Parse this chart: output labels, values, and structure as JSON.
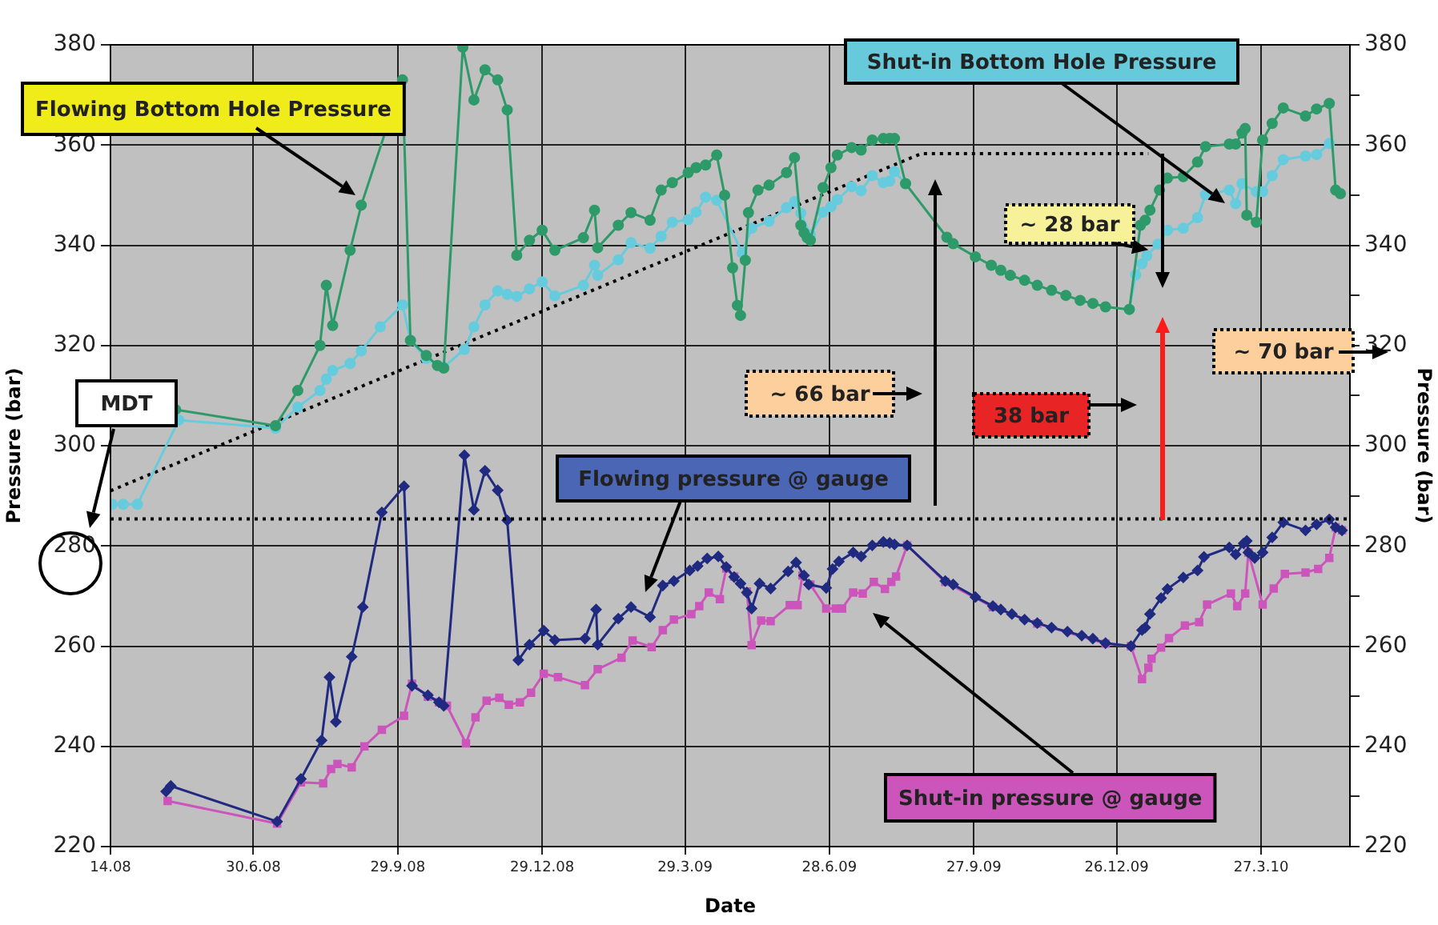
{
  "chart_data": {
    "type": "line",
    "xlabel": "Date",
    "ylabel": "Pressure (bar)",
    "y2label": "Pressure (bar)",
    "xlim": [
      "2008-04-01",
      "2010-05-22"
    ],
    "xticks": [
      {
        "value": "2008-04-01",
        "label": "14.08"
      },
      {
        "value": "2008-06-30",
        "label": "30.6.08"
      },
      {
        "value": "2008-09-29",
        "label": "29.9.08"
      },
      {
        "value": "2008-12-29",
        "label": "29.12.08"
      },
      {
        "value": "2009-03-29",
        "label": "29.3.09"
      },
      {
        "value": "2009-06-28",
        "label": "28.6.09"
      },
      {
        "value": "2009-09-27",
        "label": "27.9.09"
      },
      {
        "value": "2009-12-26",
        "label": "26.12.09"
      },
      {
        "value": "2010-03-27",
        "label": "27.3.10"
      }
    ],
    "ylim": [
      220,
      380
    ],
    "yticks": [
      220,
      240,
      260,
      280,
      300,
      320,
      340,
      360,
      380
    ],
    "y2lim": [
      220,
      380
    ],
    "y2ticks": [
      220,
      {
        "value": 230,
        "label": null
      },
      240,
      {
        "value": 250,
        "label": null
      },
      260,
      {
        "value": 270,
        "label": null
      },
      280,
      {
        "value": 290,
        "label": null
      },
      300,
      {
        "value": 310,
        "label": null
      },
      320,
      {
        "value": 330,
        "label": null
      },
      340,
      {
        "value": 350,
        "label": null
      },
      360,
      {
        "value": 370,
        "label": null
      },
      380
    ],
    "grid": true,
    "series": [
      {
        "name": "Flowing Bottom Hole Pressure",
        "color": "#2e9a6a",
        "marker": "circle",
        "x": [
          "2008-05-12",
          "2008-07-14",
          "2008-07-28",
          "2008-08-11",
          "2008-08-15",
          "2008-08-19",
          "2008-08-30",
          "2008-09-06",
          "2008-10-02",
          "2008-10-07",
          "2008-10-17",
          "2008-10-24",
          "2008-10-28",
          "2008-11-09",
          "2008-11-16",
          "2008-11-23",
          "2008-12-01",
          "2008-12-07",
          "2008-12-13",
          "2008-12-21",
          "2008-12-29",
          "2009-01-06",
          "2009-01-24",
          "2009-01-31",
          "2009-02-02",
          "2009-02-15",
          "2009-02-23",
          "2009-03-07",
          "2009-03-14",
          "2009-03-21",
          "2009-03-31",
          "2009-04-05",
          "2009-04-11",
          "2009-04-18",
          "2009-04-23",
          "2009-04-28",
          "2009-05-01",
          "2009-05-03",
          "2009-05-06",
          "2009-05-08",
          "2009-05-14",
          "2009-05-21",
          "2009-06-01",
          "2009-06-06",
          "2009-06-10",
          "2009-06-12",
          "2009-06-14",
          "2009-06-16",
          "2009-06-24",
          "2009-06-29",
          "2009-07-03",
          "2009-07-12",
          "2009-07-18",
          "2009-07-25",
          "2009-08-01",
          "2009-08-05",
          "2009-08-08",
          "2009-08-15",
          "2009-09-10",
          "2009-09-14",
          "2009-09-28",
          "2009-10-08",
          "2009-10-14",
          "2009-10-20",
          "2009-10-29",
          "2009-11-06",
          "2009-11-15",
          "2009-11-24",
          "2009-12-03",
          "2009-12-11",
          "2009-12-19",
          "2010-01-03",
          "2010-01-10",
          "2010-01-13",
          "2010-01-16",
          "2010-01-22",
          "2010-01-27",
          "2010-02-06",
          "2010-02-15",
          "2010-02-20",
          "2010-03-07",
          "2010-03-11",
          "2010-03-15",
          "2010-03-17",
          "2010-03-18",
          "2010-03-24",
          "2010-03-28",
          "2010-04-03",
          "2010-04-10",
          "2010-04-24",
          "2010-05-01",
          "2010-05-09",
          "2010-05-13",
          "2010-05-16"
        ],
        "values": [
          307.2,
          304,
          311,
          320,
          332,
          324,
          339,
          348,
          373,
          321,
          318,
          316,
          315.5,
          379.5,
          369,
          375,
          373,
          367,
          338,
          341,
          343,
          339,
          341.5,
          347,
          339.5,
          344,
          346.5,
          345,
          351,
          352.5,
          354.5,
          355.5,
          356,
          358,
          350,
          335.5,
          328,
          326,
          337,
          346.5,
          351,
          352,
          354.5,
          357.5,
          344,
          342.5,
          341.5,
          341,
          351.5,
          355.5,
          358,
          359.5,
          359,
          361,
          361.3,
          361.3,
          361.3,
          352.3,
          341.6,
          340.3,
          337.7,
          336,
          335,
          334,
          333,
          332,
          331,
          330,
          329,
          328.4,
          327.7,
          327.2,
          344,
          345,
          347,
          351,
          353.4,
          353.7,
          356.6,
          359.7,
          360.2,
          360.2,
          362.4,
          363.3,
          346,
          344.6,
          361,
          364.3,
          367.4,
          365.8,
          367.2,
          368.3,
          351,
          350.3
        ]
      },
      {
        "name": "Shut-in Bottom Hole Pressure",
        "color": "#66ccdd",
        "marker": "circle",
        "x": [
          "2008-04-02",
          "2008-04-09",
          "2008-04-18",
          "2008-05-14",
          "2008-07-14",
          "2008-07-28",
          "2008-08-11",
          "2008-08-15",
          "2008-08-19",
          "2008-08-30",
          "2008-09-06",
          "2008-09-18",
          "2008-10-02",
          "2008-10-07",
          "2008-10-17",
          "2008-10-28",
          "2008-11-10",
          "2008-11-16",
          "2008-11-23",
          "2008-12-01",
          "2008-12-07",
          "2008-12-13",
          "2008-12-21",
          "2008-12-29",
          "2009-01-06",
          "2009-01-24",
          "2009-01-31",
          "2009-02-02",
          "2009-02-15",
          "2009-02-23",
          "2009-03-07",
          "2009-03-14",
          "2009-03-21",
          "2009-03-31",
          "2009-04-05",
          "2009-04-11",
          "2009-04-18",
          "2009-05-04",
          "2009-05-10",
          "2009-05-21",
          "2009-06-01",
          "2009-06-06",
          "2009-06-10",
          "2009-06-16",
          "2009-06-24",
          "2009-06-29",
          "2009-07-03",
          "2009-07-12",
          "2009-07-18",
          "2009-07-25",
          "2009-08-01",
          "2009-08-05",
          "2009-08-08",
          "2009-08-15",
          "2009-10-23",
          "2010-01-03",
          "2010-01-07",
          "2010-01-11",
          "2010-01-14",
          "2010-01-21",
          "2010-01-27",
          "2010-02-06",
          "2010-02-15",
          "2010-02-20",
          "2010-03-07",
          "2010-03-11",
          "2010-03-15",
          "2010-03-24",
          "2010-03-28",
          "2010-04-03",
          "2010-04-10",
          "2010-04-24",
          "2010-05-01",
          "2010-05-09"
        ],
        "values": [
          288.3,
          288.3,
          288.3,
          305.1,
          303.5,
          307.7,
          311,
          313.3,
          315,
          316.4,
          318.9,
          323.7,
          328.1,
          321,
          317.4,
          315.7,
          319.2,
          323.7,
          328.1,
          330.9,
          330.2,
          329.8,
          331.3,
          332.7,
          329.9,
          332,
          336,
          334,
          337.1,
          340.5,
          339.4,
          341.8,
          344.6,
          345.1,
          346.6,
          349.6,
          349,
          338.5,
          343.4,
          344.8,
          347.5,
          348.7,
          346.4,
          342.1,
          346.6,
          347.7,
          349.1,
          351.7,
          350.9,
          353.9,
          352.5,
          352.8,
          354.7,
          352.3,
          null,
          327.2,
          334.1,
          336.3,
          337.9,
          340.2,
          343,
          343.4,
          345.5,
          350.1,
          351,
          348.3,
          352.3,
          350.7,
          350.7,
          353.9,
          357.1,
          357.8,
          358.1,
          360.3
        ]
      },
      {
        "name": "Flowing pressure @ gauge",
        "color": "#1f2a80",
        "marker": "diamond",
        "x": [
          "2008-05-06",
          "2008-05-09",
          "2008-07-15",
          "2008-07-30",
          "2008-08-12",
          "2008-08-17",
          "2008-08-21",
          "2008-08-31",
          "2008-09-07",
          "2008-09-19",
          "2008-10-03",
          "2008-10-08",
          "2008-10-18",
          "2008-10-25",
          "2008-10-28",
          "2008-11-10",
          "2008-11-16",
          "2008-11-23",
          "2008-12-01",
          "2008-12-07",
          "2008-12-14",
          "2008-12-21",
          "2008-12-30",
          "2009-01-06",
          "2009-01-25",
          "2009-02-01",
          "2009-02-02",
          "2009-02-15",
          "2009-02-23",
          "2009-03-07",
          "2009-03-15",
          "2009-03-22",
          "2009-04-01",
          "2009-04-06",
          "2009-04-12",
          "2009-04-19",
          "2009-04-24",
          "2009-04-29",
          "2009-05-03",
          "2009-05-07",
          "2009-05-10",
          "2009-05-15",
          "2009-05-22",
          "2009-06-02",
          "2009-06-07",
          "2009-06-12",
          "2009-06-15",
          "2009-06-26",
          "2009-06-30",
          "2009-07-04",
          "2009-07-13",
          "2009-07-18",
          "2009-07-25",
          "2009-08-01",
          "2009-08-05",
          "2009-08-08",
          "2009-08-16",
          "2009-09-09",
          "2009-09-14",
          "2009-09-28",
          "2009-10-09",
          "2009-10-14",
          "2009-10-21",
          "2009-10-29",
          "2009-11-06",
          "2009-11-15",
          "2009-11-25",
          "2009-12-04",
          "2009-12-11",
          "2009-12-19",
          "2010-01-04",
          "2010-01-11",
          "2010-01-13",
          "2010-01-16",
          "2010-01-23",
          "2010-01-27",
          "2010-02-06",
          "2010-02-15",
          "2010-02-19",
          "2010-03-07",
          "2010-03-11",
          "2010-03-16",
          "2010-03-18",
          "2010-03-19",
          "2010-03-23",
          "2010-03-28",
          "2010-04-03",
          "2010-04-10",
          "2010-04-24",
          "2010-05-01",
          "2010-05-09",
          "2010-05-13",
          "2010-05-17"
        ],
        "values": [
          231,
          232.1,
          225,
          233.5,
          241.2,
          253.8,
          244.9,
          257.9,
          267.8,
          286.7,
          291.9,
          252.1,
          250.2,
          248.8,
          248.1,
          298.1,
          287.2,
          295,
          291.1,
          285.1,
          257.2,
          260.3,
          263.1,
          261.2,
          261.5,
          267.3,
          260.3,
          265.5,
          267.8,
          265.8,
          272.1,
          273,
          275.1,
          276,
          277.5,
          277.9,
          275.8,
          273.8,
          272.5,
          270.7,
          267.5,
          272.5,
          271.5,
          274.9,
          276.7,
          274.1,
          272.3,
          271.6,
          275.4,
          276.9,
          278.7,
          277.9,
          280.1,
          280.8,
          280.6,
          280.3,
          280.1,
          273,
          272.3,
          269.8,
          268,
          267.3,
          266.4,
          265.3,
          264.6,
          263.7,
          262.9,
          262.1,
          261.5,
          260.6,
          260,
          263.2,
          263.7,
          266.4,
          269.6,
          271.4,
          273.7,
          275.1,
          277.8,
          279.7,
          278.3,
          280.5,
          281,
          278.7,
          277.6,
          278.7,
          281.7,
          284.7,
          283.1,
          284.3,
          285.3,
          283.7,
          283.1
        ]
      },
      {
        "name": "Shut-in pressure @ gauge",
        "color": "#cc55bb",
        "marker": "square",
        "x": [
          "2008-05-07",
          "2008-07-15",
          "2008-07-30",
          "2008-08-13",
          "2008-08-18",
          "2008-08-22",
          "2008-08-31",
          "2008-09-08",
          "2008-09-19",
          "2008-10-03",
          "2008-10-08",
          "2008-10-18",
          "2008-10-25",
          "2008-10-30",
          "2008-11-11",
          "2008-11-17",
          "2008-11-24",
          "2008-12-02",
          "2008-12-08",
          "2008-12-15",
          "2008-12-22",
          "2008-12-30",
          "2009-01-08",
          "2009-01-25",
          "2009-02-02",
          "2009-02-17",
          "2009-02-24",
          "2009-03-08",
          "2009-03-15",
          "2009-03-22",
          "2009-04-02",
          "2009-04-07",
          "2009-04-13",
          "2009-04-20",
          "2009-04-24",
          "2009-04-29",
          "2009-05-07",
          "2009-05-10",
          "2009-05-16",
          "2009-05-22",
          "2009-06-03",
          "2009-06-08",
          "2009-06-11",
          "2009-06-16",
          "2009-06-26",
          "2009-07-02",
          "2009-07-06",
          "2009-07-13",
          "2009-07-19",
          "2009-07-26",
          "2009-08-02",
          "2009-08-06",
          "2009-08-09",
          "2009-08-16",
          "2009-09-09",
          "2009-10-09",
          "2009-11-06",
          "2009-12-19",
          "2010-01-04",
          "2010-01-11",
          "2010-01-15",
          "2010-01-17",
          "2010-01-23",
          "2010-01-28",
          "2010-02-07",
          "2010-02-16",
          "2010-02-21",
          "2010-03-08",
          "2010-03-12",
          "2010-03-17",
          "2010-03-19",
          "2010-03-28",
          "2010-04-04",
          "2010-04-11",
          "2010-04-24",
          "2010-05-02",
          "2010-05-09",
          "2010-05-13",
          "2010-05-17"
        ],
        "values": [
          229.1,
          224.6,
          232.8,
          232.6,
          235.5,
          236.5,
          235.8,
          240,
          243.3,
          246.1,
          252.5,
          249.9,
          248.8,
          248.1,
          240.6,
          245.8,
          249.1,
          249.7,
          248.3,
          248.8,
          250.7,
          254.5,
          253.8,
          252.2,
          255.4,
          257.7,
          261.1,
          259.8,
          263.2,
          265.3,
          266.4,
          268,
          270.7,
          269.4,
          275.5,
          273.9,
          270.9,
          260.2,
          265.1,
          265,
          268.2,
          268.2,
          274.1,
          272.3,
          267.5,
          267.5,
          267.5,
          270.7,
          270.5,
          272.8,
          271.4,
          272.8,
          273.9,
          280.1,
          272.8,
          267.8,
          264.5,
          260.5,
          260,
          253.4,
          255.7,
          257.5,
          259.7,
          261.6,
          264.1,
          264.8,
          268.3,
          270.5,
          268,
          270.5,
          278.7,
          268.3,
          271.5,
          274.4,
          274.7,
          275.4,
          277.6,
          283.7,
          283.1
        ]
      },
      {
        "color": "#000000",
        "marker": "none",
        "line_style": "dotted",
        "x": [
          "2008-04-01",
          "2009-08-25",
          "2010-01-15"
        ],
        "values": [
          291,
          358.3,
          358.3
        ]
      }
    ],
    "ref_lines": [
      {
        "axis": "y",
        "value": 285.4,
        "color": "#000000",
        "line_style": "dotted"
      }
    ],
    "annotations": [
      "MDT",
      {
        "text": "~ 28 bar",
        "x": "2010-01-15",
        "y": 339.1
      },
      "~ 66 bar",
      "38 bar",
      "~ 70 bar"
    ]
  }
}
